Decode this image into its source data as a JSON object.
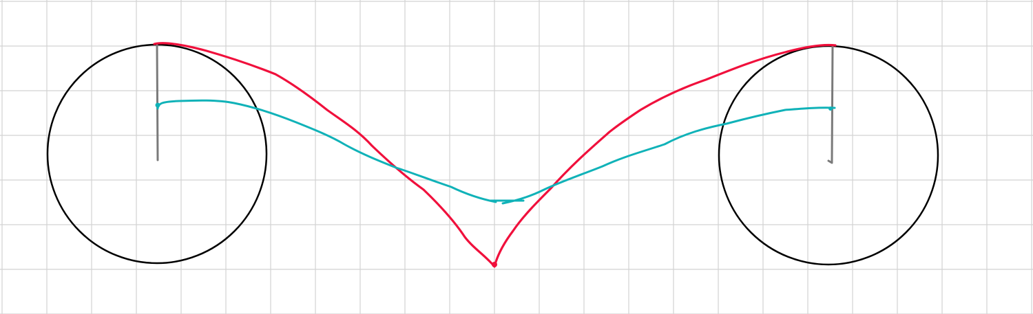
{
  "colors": {
    "background": "#ffffff",
    "grid": "#d2d2d2",
    "circle": "#000000",
    "radius_line": "#7a7a7a",
    "red_curve": "#f0103c",
    "teal_curve": "#10b2b8"
  },
  "elements": {
    "left_circle": "circle",
    "right_circle": "circle",
    "left_radius": "radius-line",
    "right_radius": "radius-line",
    "red_curve": "hand-drawn-curve",
    "teal_curve": "hand-drawn-curve"
  }
}
